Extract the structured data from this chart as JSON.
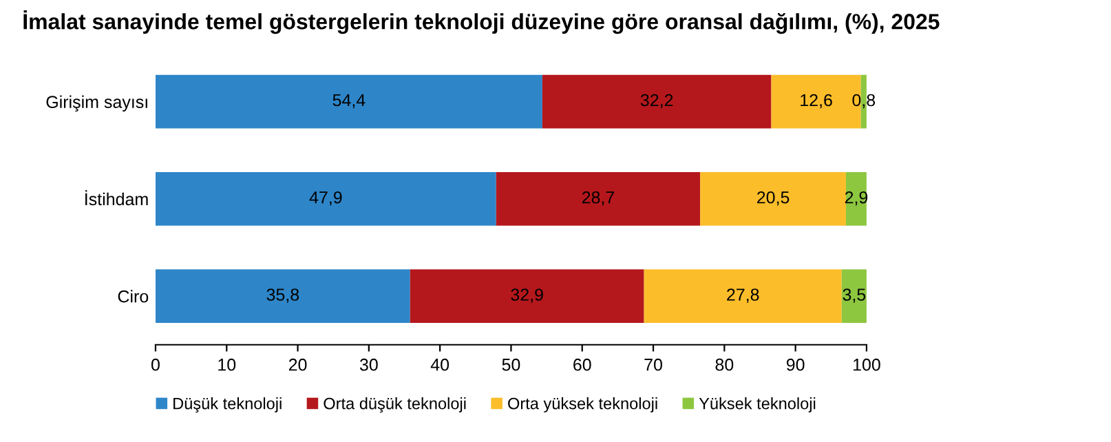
{
  "chart_data": {
    "type": "bar",
    "orientation": "horizontal",
    "stacked": true,
    "title": "İmalat sanayinde temel göstergelerin teknoloji düzeyine göre oransal dağılımı, (%), 2025",
    "categories": [
      "Girişim sayısı",
      "İstihdam",
      "Ciro"
    ],
    "series": [
      {
        "name": "Düşük teknoloji",
        "color": "#2e86c9",
        "values": [
          54.4,
          47.9,
          35.8
        ],
        "value_labels": [
          "54,4",
          "47,9",
          "35,8"
        ]
      },
      {
        "name": "Orta düşük teknoloji",
        "color": "#b5181c",
        "values": [
          32.2,
          28.7,
          32.9
        ],
        "value_labels": [
          "32,2",
          "28,7",
          "32,9"
        ]
      },
      {
        "name": "Orta yüksek teknoloji",
        "color": "#fbbd2a",
        "values": [
          12.6,
          20.5,
          27.8
        ],
        "value_labels": [
          "12,6",
          "20,5",
          "27,8"
        ]
      },
      {
        "name": "Yüksek teknoloji",
        "color": "#8dc63f",
        "values": [
          0.8,
          2.9,
          3.5
        ],
        "value_labels": [
          "0,8",
          "2,9",
          "3,5"
        ]
      }
    ],
    "xlim": [
      0,
      100
    ],
    "xticks": [
      0,
      10,
      20,
      30,
      40,
      50,
      60,
      70,
      80,
      90,
      100
    ],
    "grid": false,
    "legend": "bottom"
  }
}
